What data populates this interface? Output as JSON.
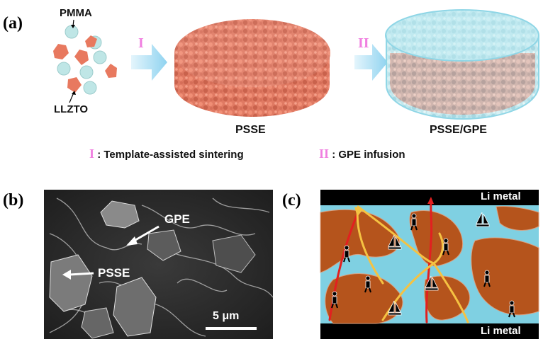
{
  "panel_a": {
    "label": "(a)",
    "pmma": "PMMA",
    "llzto": "LLZTO",
    "step1_numeral": "I",
    "step2_numeral": "II",
    "product1": "PSSE",
    "product2": "PSSE/GPE",
    "step1_desc": ": Template-assisted sintering",
    "step2_desc": ": GPE infusion"
  },
  "panel_b": {
    "label": "(b)",
    "gpe": "GPE",
    "psse": "PSSE",
    "scale_bar": "5 μm"
  },
  "panel_c": {
    "label": "(c)",
    "top_electrode": "Li metal",
    "bottom_electrode": "Li metal"
  },
  "colors": {
    "llzto": "#e8795f",
    "pmma": "#bfe6e6",
    "gpe": "#8fd6e6",
    "ceramic": "#b5541c",
    "arrow": "#a6def4",
    "path_red": "#e22020",
    "path_yellow": "#f5c242",
    "numeral": "#f07fe0"
  }
}
